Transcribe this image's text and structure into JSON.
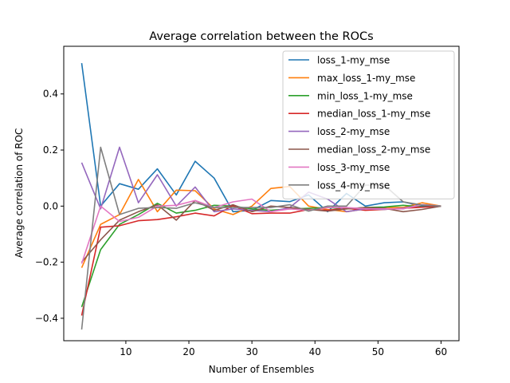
{
  "chart_data": {
    "type": "line",
    "title": "Average correlation between the ROCs",
    "xlabel": "Number of Ensembles",
    "ylabel": "Average correlation of ROC",
    "xlim": [
      0.15,
      62.85
    ],
    "ylim": [
      -0.48,
      0.57
    ],
    "xticks": [
      10,
      20,
      30,
      40,
      50,
      60
    ],
    "yticks": [
      -0.4,
      -0.2,
      0.0,
      0.2,
      0.4
    ],
    "grid": false,
    "legend_position": "top-right",
    "x": [
      3,
      6,
      9,
      12,
      15,
      18,
      21,
      24,
      27,
      30,
      33,
      36,
      39,
      42,
      45,
      48,
      51,
      54,
      57,
      60
    ],
    "series": [
      {
        "name": "loss_1-my_mse",
        "color": "#1f77b4",
        "values": [
          0.51,
          0.0,
          0.08,
          0.06,
          0.133,
          0.04,
          0.16,
          0.1,
          -0.02,
          -0.015,
          0.02,
          0.016,
          0.04,
          -0.02,
          0.045,
          0.0,
          0.012,
          0.015,
          0.0,
          0.0
        ]
      },
      {
        "name": "max_loss_1-my_mse",
        "color": "#ff7f0e",
        "values": [
          -0.22,
          -0.065,
          -0.03,
          0.095,
          -0.02,
          0.057,
          0.055,
          -0.01,
          -0.03,
          0.0,
          0.063,
          0.07,
          0.0,
          -0.012,
          -0.02,
          -0.01,
          -0.005,
          -0.005,
          0.012,
          0.0
        ]
      },
      {
        "name": "min_loss_1-my_mse",
        "color": "#2ca02c",
        "values": [
          -0.36,
          -0.155,
          -0.065,
          -0.03,
          0.01,
          -0.025,
          -0.015,
          0.003,
          0.0,
          -0.01,
          -0.015,
          -0.01,
          -0.008,
          -0.005,
          -0.01,
          -0.005,
          -0.003,
          0.003,
          -0.003,
          0.0
        ]
      },
      {
        "name": "median_loss_1-my_mse",
        "color": "#d62728",
        "values": [
          -0.39,
          -0.075,
          -0.07,
          -0.052,
          -0.048,
          -0.038,
          -0.025,
          -0.035,
          0.002,
          -0.027,
          -0.025,
          -0.025,
          -0.012,
          -0.015,
          -0.008,
          -0.015,
          -0.012,
          -0.008,
          -0.004,
          0.0
        ]
      },
      {
        "name": "loss_2-my_mse",
        "color": "#9467bd",
        "values": [
          0.155,
          -0.01,
          0.21,
          0.012,
          0.112,
          0.0,
          0.068,
          -0.02,
          -0.01,
          -0.015,
          -0.02,
          -0.005,
          0.05,
          0.025,
          -0.02,
          -0.01,
          -0.012,
          -0.008,
          0.005,
          0.0
        ]
      },
      {
        "name": "median_loss_2-my_mse",
        "color": "#8c564b",
        "values": [
          -0.2,
          -0.12,
          -0.05,
          -0.02,
          0.005,
          -0.05,
          0.02,
          -0.015,
          0.005,
          -0.02,
          0.0,
          -0.005,
          -0.012,
          -0.018,
          -0.01,
          -0.005,
          -0.008,
          -0.02,
          -0.012,
          0.0
        ]
      },
      {
        "name": "loss_3-my_mse",
        "color": "#e377c2",
        "values": [
          -0.205,
          0.0,
          -0.055,
          -0.04,
          0.0,
          0.003,
          0.02,
          -0.005,
          0.015,
          0.025,
          -0.02,
          -0.01,
          -0.015,
          -0.005,
          -0.005,
          -0.01,
          -0.01,
          -0.01,
          0.005,
          0.0
        ]
      },
      {
        "name": "loss_4-my_mse",
        "color": "#7f7f7f",
        "values": [
          -0.44,
          0.21,
          -0.03,
          -0.008,
          -0.005,
          -0.008,
          0.012,
          -0.005,
          -0.005,
          -0.005,
          -0.005,
          0.005,
          -0.018,
          0.0,
          0.0,
          0.075,
          0.075,
          0.015,
          0.004,
          0.0
        ]
      }
    ]
  }
}
